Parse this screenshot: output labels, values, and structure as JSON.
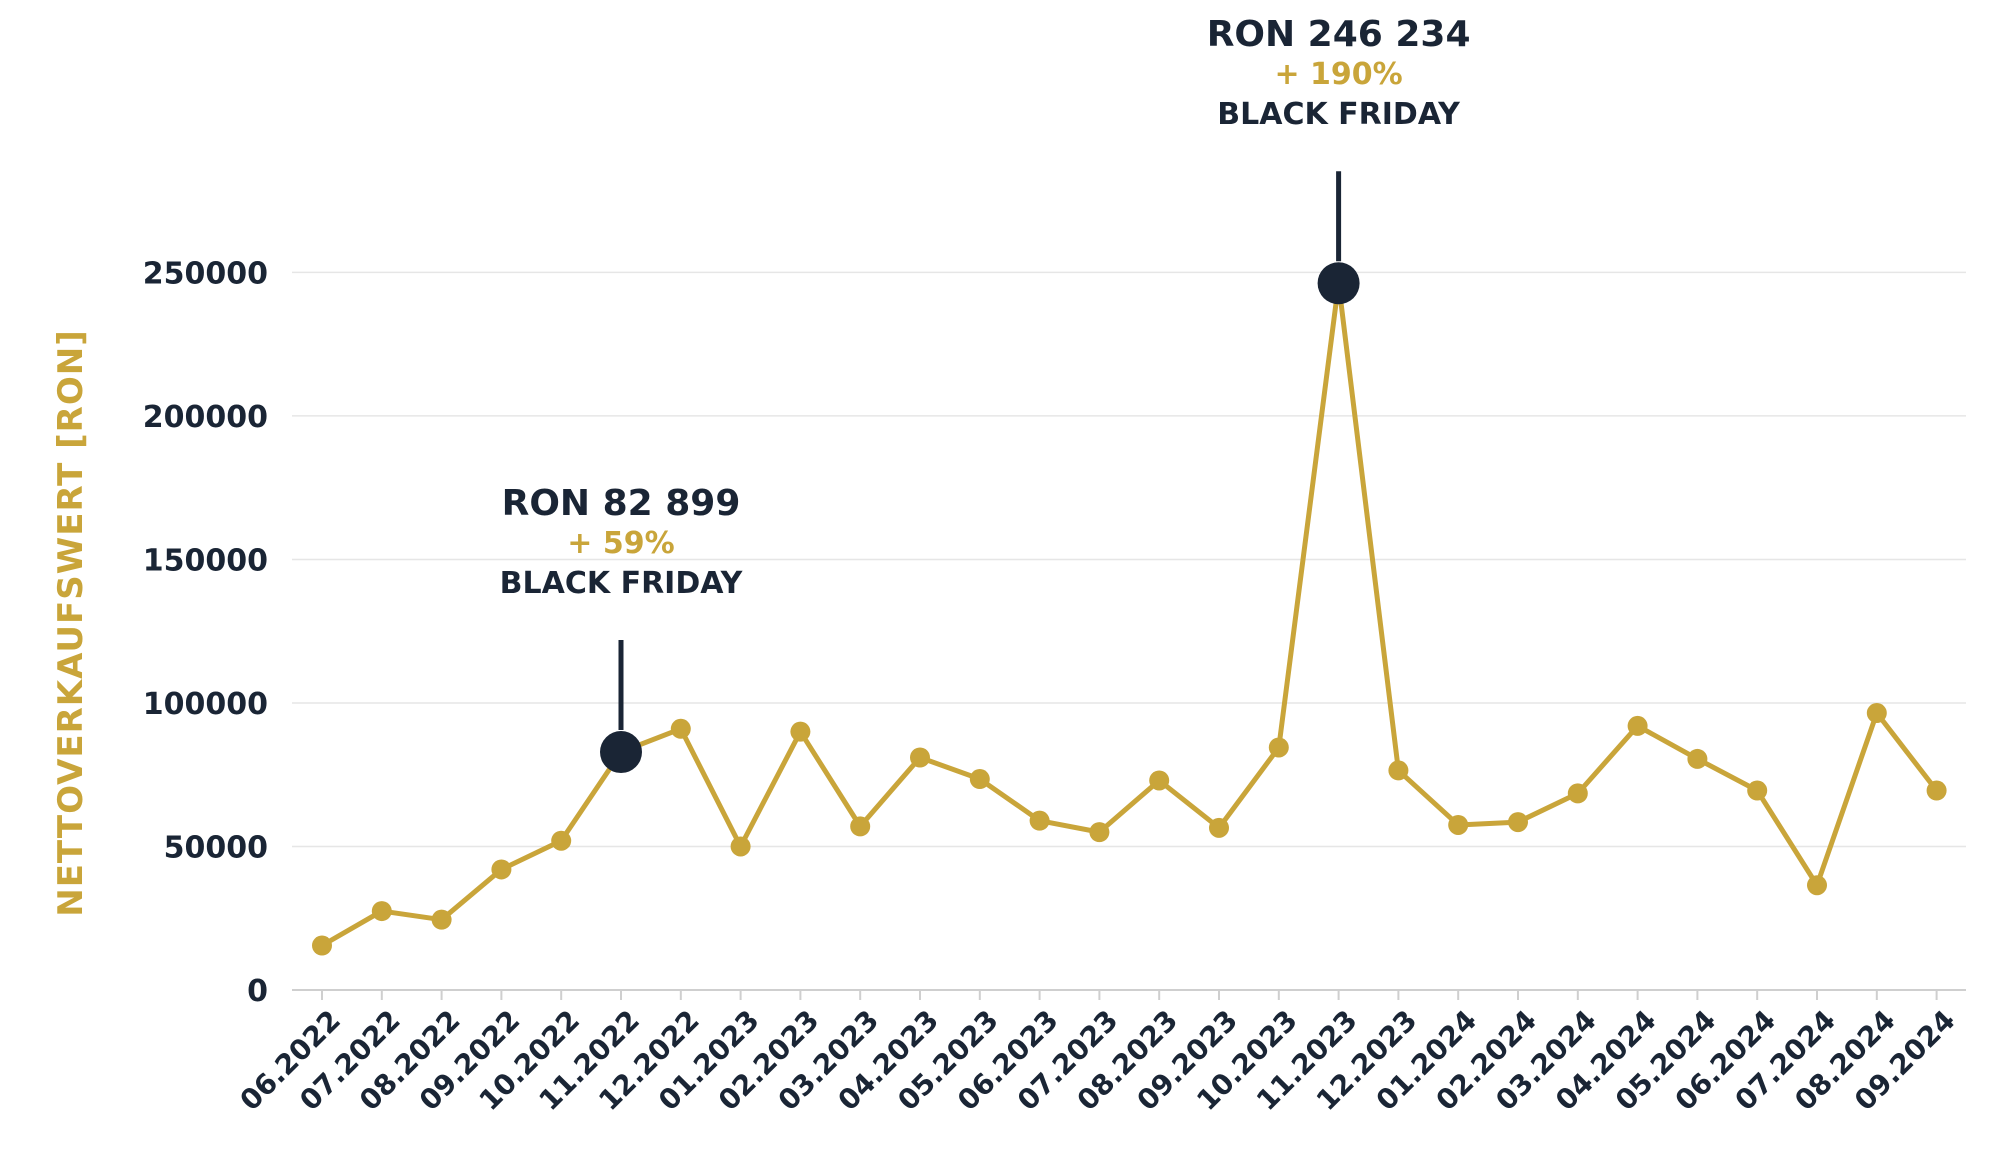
{
  "chart_data": {
    "type": "line",
    "ylabel": "NETTOVERKAUFSWERT [RON]",
    "xlabel": "",
    "ylim": [
      0,
      270000
    ],
    "yticks": [
      {
        "value": 0,
        "label": "0"
      },
      {
        "value": 50000,
        "label": "50000"
      },
      {
        "value": 100000,
        "label": "100000"
      },
      {
        "value": 150000,
        "label": "150000"
      },
      {
        "value": 200000,
        "label": "200000"
      },
      {
        "value": 250000,
        "label": "250000"
      }
    ],
    "grid": true,
    "colors": {
      "line": "#c9a53a",
      "highlight": "#1a2535",
      "grid": "#e6e6e6",
      "text": "#1a2535"
    },
    "categories": [
      "06.2022",
      "07.2022",
      "08.2022",
      "09.2022",
      "10.2022",
      "11.2022",
      "12.2022",
      "01.2023",
      "02.2023",
      "03.2023",
      "04.2023",
      "05.2023",
      "06.2023",
      "07.2023",
      "08.2023",
      "09.2023",
      "10.2023",
      "11.2023",
      "12.2023",
      "01.2024",
      "02.2024",
      "03.2024",
      "04.2024",
      "05.2024",
      "06.2024",
      "07.2024",
      "08.2024",
      "09.2024"
    ],
    "series": [
      {
        "values": [
          15500,
          27500,
          24500,
          42000,
          52000,
          82899,
          91000,
          50000,
          90000,
          57000,
          81000,
          73500,
          59000,
          55000,
          73000,
          56500,
          84500,
          246234,
          76500,
          57500,
          58500,
          68500,
          92000,
          80500,
          69500,
          36500,
          96500,
          69500
        ]
      }
    ],
    "annotations": [
      {
        "index": 5,
        "value_label": "RON 82 899",
        "pct_label": "+ 59%",
        "tag": "BLACK FRIDAY"
      },
      {
        "index": 17,
        "value_label": "RON 246 234",
        "pct_label": "+ 190%",
        "tag": "BLACK FRIDAY"
      }
    ]
  }
}
